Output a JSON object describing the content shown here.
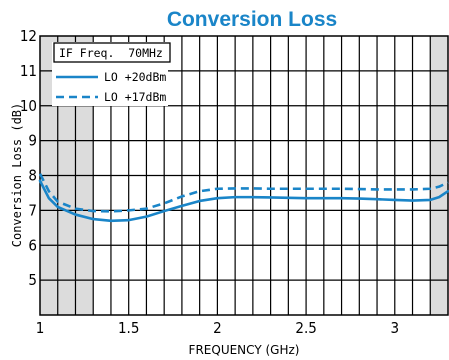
{
  "chart_data": {
    "type": "line",
    "title": "Conversion Loss",
    "xlabel": "FREQUENCY (GHz)",
    "ylabel": "Conversion Loss  (dB)",
    "xlim": [
      1,
      3.3
    ],
    "ylim": [
      4,
      12
    ],
    "x_ticks": [
      1,
      1.5,
      2,
      2.5,
      3
    ],
    "x_tick_labels": [
      "1",
      "1.5",
      "2",
      "2.5",
      "3"
    ],
    "y_ticks": [
      5,
      6,
      7,
      8,
      9,
      10,
      11,
      12
    ],
    "y_tick_labels": [
      "5",
      "6",
      "7",
      "8",
      "9",
      "10",
      "11",
      "12"
    ],
    "grid": true,
    "shaded_x_ranges": [
      [
        1,
        1.3
      ],
      [
        3.2,
        3.3
      ]
    ],
    "legend_title": "IF Freq.  70MHz",
    "legend_position": "top-left",
    "series": [
      {
        "name": "LO +20dBm",
        "style": "solid",
        "color": "#1a85c8",
        "x": [
          1.0,
          1.05,
          1.1,
          1.2,
          1.3,
          1.4,
          1.5,
          1.6,
          1.7,
          1.8,
          1.9,
          2.0,
          2.1,
          2.2,
          2.3,
          2.4,
          2.5,
          2.6,
          2.7,
          2.8,
          2.9,
          3.0,
          3.1,
          3.2,
          3.25,
          3.3
        ],
        "y": [
          7.85,
          7.35,
          7.1,
          6.88,
          6.75,
          6.7,
          6.72,
          6.82,
          6.98,
          7.13,
          7.27,
          7.35,
          7.38,
          7.38,
          7.37,
          7.36,
          7.35,
          7.35,
          7.35,
          7.34,
          7.32,
          7.3,
          7.28,
          7.3,
          7.38,
          7.55
        ]
      },
      {
        "name": "LO +17dBm",
        "style": "dashed",
        "color": "#1a85c8",
        "x": [
          1.0,
          1.05,
          1.1,
          1.2,
          1.3,
          1.4,
          1.5,
          1.6,
          1.7,
          1.8,
          1.9,
          2.0,
          2.1,
          2.2,
          2.3,
          2.4,
          2.5,
          2.6,
          2.7,
          2.8,
          2.9,
          3.0,
          3.1,
          3.2,
          3.25,
          3.3
        ],
        "y": [
          8.05,
          7.55,
          7.25,
          7.05,
          6.98,
          6.97,
          7.0,
          7.05,
          7.2,
          7.4,
          7.55,
          7.62,
          7.63,
          7.63,
          7.62,
          7.62,
          7.62,
          7.62,
          7.62,
          7.61,
          7.6,
          7.6,
          7.6,
          7.62,
          7.68,
          7.8
        ]
      }
    ]
  }
}
